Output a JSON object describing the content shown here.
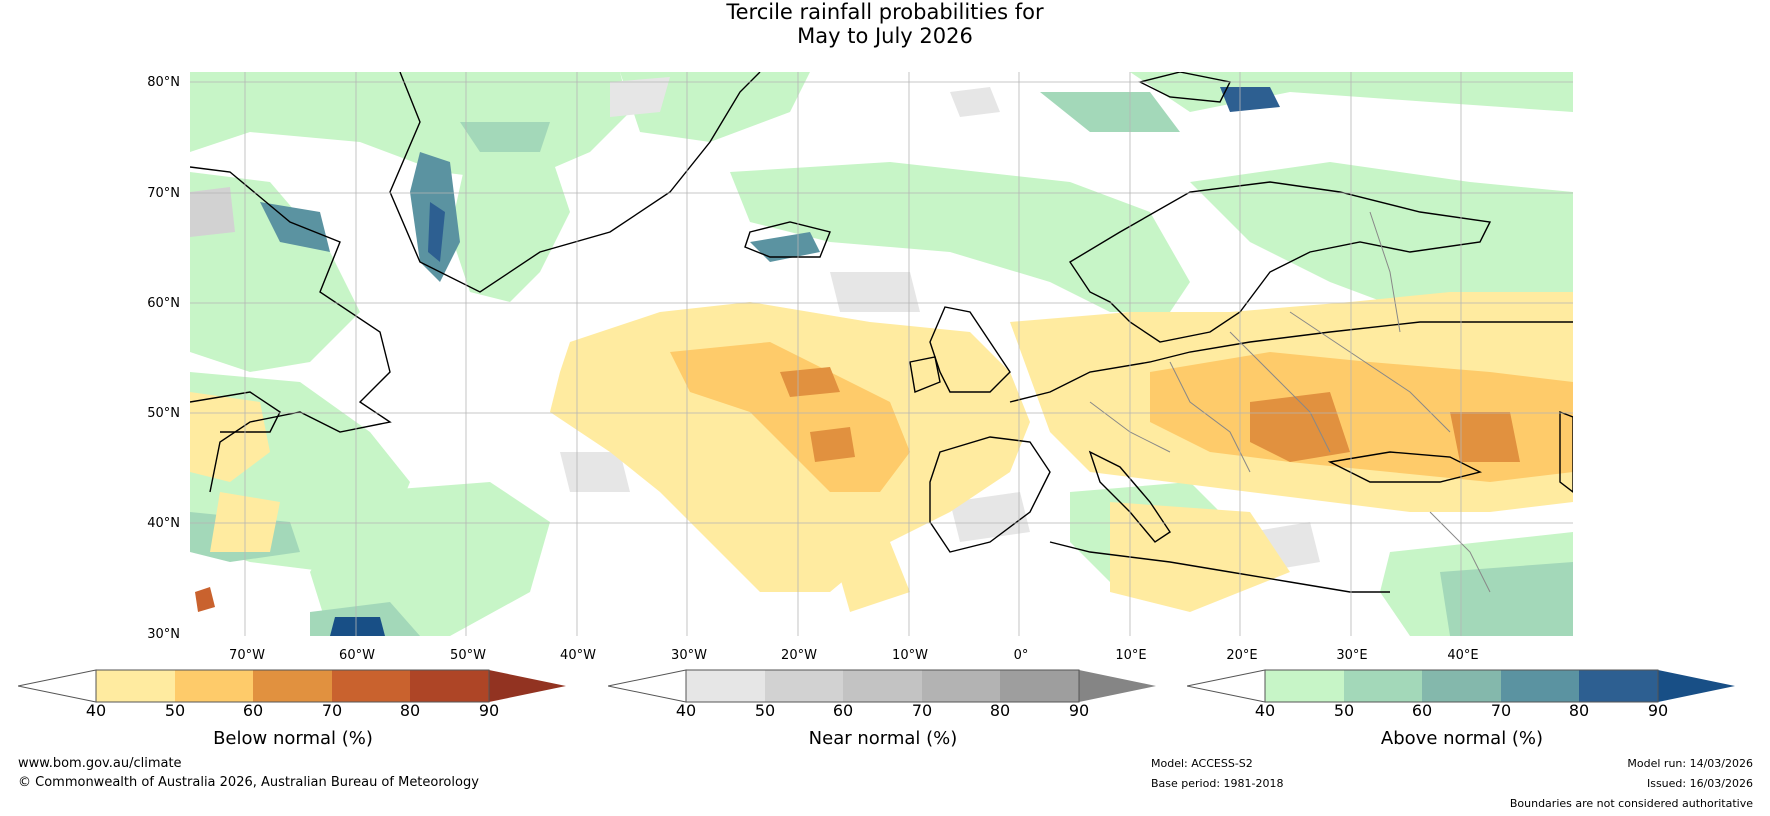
{
  "title_line1": "Tercile rainfall probabilities for",
  "title_line2": "May to July 2026",
  "map": {
    "lat_labels": [
      "80°N",
      "70°N",
      "60°N",
      "50°N",
      "40°N",
      "30°N"
    ],
    "lon_labels": [
      "70°W",
      "60°W",
      "50°W",
      "40°W",
      "30°W",
      "20°W",
      "10°W",
      "0°",
      "10°E",
      "20°E",
      "30°E",
      "40°E"
    ]
  },
  "colorbars": {
    "below": {
      "label": "Below normal (%)",
      "ticks": [
        "40",
        "50",
        "60",
        "70",
        "80",
        "90"
      ],
      "colors": [
        "#ffffff",
        "#ffeba0",
        "#fecb6a",
        "#e1913f",
        "#c9622e",
        "#ae4526",
        "#923321"
      ]
    },
    "near": {
      "label": "Near normal (%)",
      "ticks": [
        "40",
        "50",
        "60",
        "70",
        "80",
        "90"
      ],
      "colors": [
        "#ffffff",
        "#e6e6e6",
        "#d2d2d2",
        "#c3c3c3",
        "#b3b3b3",
        "#9e9e9e",
        "#858585"
      ]
    },
    "above": {
      "label": "Above normal (%)",
      "ticks": [
        "40",
        "50",
        "60",
        "70",
        "80",
        "90"
      ],
      "colors": [
        "#ffffff",
        "#c7f5c7",
        "#a3d8b9",
        "#84b8ac",
        "#5b93a1",
        "#2d5f91",
        "#184f86"
      ]
    }
  },
  "footer": {
    "website": "www.bom.gov.au/climate",
    "copyright": "© Commonwealth of Australia 2026, Australian Bureau of Meteorology",
    "model": "Model: ACCESS-S2",
    "base_period": "Base period: 1981-2018",
    "model_run": "Model run: 14/03/2026",
    "issued": "Issued: 16/03/2026",
    "disclaimer": "Boundaries are not considered authoritative"
  }
}
